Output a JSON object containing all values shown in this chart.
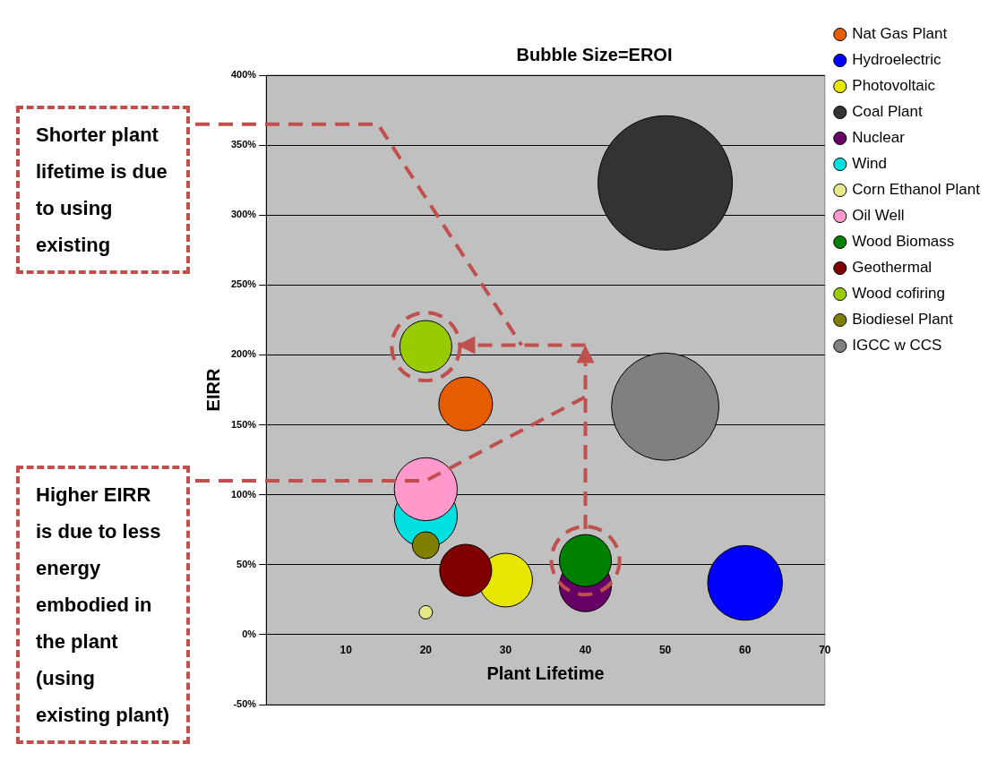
{
  "chart_data": {
    "type": "bubble",
    "title": "Bubble Size=EROI",
    "xlabel": "Plant Lifetime",
    "ylabel": "EIRR",
    "annotations": [
      "Shorter plant lifetime is due to using existing",
      "Higher EIRR is due to less energy embodied in the plant (using existing plant)"
    ],
    "xlim": [
      0,
      70
    ],
    "xticks": [
      {
        "value": 0,
        "label": null
      },
      10,
      20,
      30,
      40,
      50,
      60,
      70
    ],
    "ylim": [
      -50,
      400
    ],
    "yticks": [
      {
        "value": -50,
        "label": "-50%"
      },
      {
        "value": 0,
        "label": "0%"
      },
      {
        "value": 50,
        "label": "50%"
      },
      {
        "value": 100,
        "label": "100%"
      },
      {
        "value": 150,
        "label": "150%"
      },
      {
        "value": 200,
        "label": "200%"
      },
      {
        "value": 250,
        "label": "250%"
      },
      {
        "value": 300,
        "label": "300%"
      },
      {
        "value": 350,
        "label": "350%"
      },
      {
        "value": 400,
        "label": "400%"
      }
    ],
    "grid": "y",
    "legend": "right",
    "series": [
      {
        "name": "Nat Gas Plant",
        "color": "#e65c00",
        "x": [
          25
        ],
        "values": [
          165
        ],
        "sizes": [
          0.16
        ]
      },
      {
        "name": "Hydroelectric",
        "color": "#0000ff",
        "x": [
          60
        ],
        "values": [
          37
        ],
        "sizes": [
          0.31
        ]
      },
      {
        "name": "Photovoltaic",
        "color": "#e6e600",
        "x": [
          30
        ],
        "values": [
          39
        ],
        "sizes": [
          0.16
        ]
      },
      {
        "name": "Coal Plant",
        "color": "#333333",
        "x": [
          50
        ],
        "values": [
          323
        ],
        "sizes": [
          1
        ]
      },
      {
        "name": "Nuclear",
        "color": "#660066",
        "x": [
          40
        ],
        "values": [
          35
        ],
        "sizes": [
          0.15
        ]
      },
      {
        "name": "Wind",
        "color": "#00e0e0",
        "x": [
          20
        ],
        "values": [
          85
        ],
        "sizes": [
          0.22
        ]
      },
      {
        "name": "Corn Ethanol Plant",
        "color": "#e6e68a",
        "x": [
          20
        ],
        "values": [
          16
        ],
        "sizes": [
          0.01
        ]
      },
      {
        "name": "Oil Well",
        "color": "#ff99cc",
        "x": [
          20
        ],
        "values": [
          104
        ],
        "sizes": [
          0.22
        ]
      },
      {
        "name": "Wood Biomass",
        "color": "#008000",
        "x": [
          40
        ],
        "values": [
          53
        ],
        "sizes": [
          0.15
        ]
      },
      {
        "name": "Geothermal",
        "color": "#800000",
        "x": [
          25
        ],
        "values": [
          46
        ],
        "sizes": [
          0.15
        ]
      },
      {
        "name": "Wood cofiring",
        "color": "#99cc00",
        "x": [
          20
        ],
        "values": [
          206
        ],
        "sizes": [
          0.15
        ]
      },
      {
        "name": "Biodiesel Plant",
        "color": "#808000",
        "x": [
          20
        ],
        "values": [
          64
        ],
        "sizes": [
          0.04
        ]
      },
      {
        "name": "IGCC w CCS",
        "color": "#808080",
        "x": [
          50
        ],
        "values": [
          163
        ],
        "sizes": [
          0.64
        ]
      }
    ]
  }
}
